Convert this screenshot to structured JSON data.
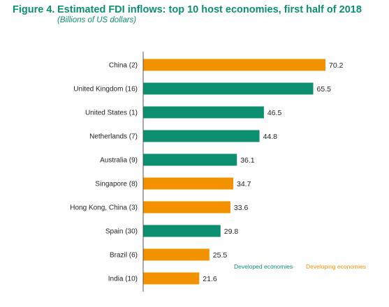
{
  "figure": {
    "number": "Figure 4.",
    "title": "Estimated FDI inflows: top 10 host economies, first half of 2018",
    "subtitle": "(Billions of US dollars)"
  },
  "colors": {
    "developed": "#0c8f71",
    "developing": "#f39200",
    "axis": "#555555"
  },
  "chart_data": {
    "type": "bar",
    "orientation": "horizontal",
    "categories": [
      "China (2)",
      "United Kingdom (16)",
      "United States (1)",
      "Netherlands (7)",
      "Australia (9)",
      "Singapore (8)",
      "Hong Kong, China (3)",
      "Spain (30)",
      "Brazil (6)",
      "India (10)"
    ],
    "values": [
      70.2,
      65.5,
      46.5,
      44.8,
      36.1,
      34.7,
      33.6,
      29.8,
      25.5,
      21.6
    ],
    "value_labels": [
      "70.2",
      "65.5",
      "46.5",
      "44.8",
      "36.1",
      "34.7",
      "33.6",
      "29.8",
      "25.5",
      "21.6"
    ],
    "groups": [
      "developing",
      "developed",
      "developed",
      "developed",
      "developed",
      "developing",
      "developing",
      "developed",
      "developing",
      "developing"
    ],
    "legend": [
      {
        "key": "developed",
        "label": "Developed economies"
      },
      {
        "key": "developing",
        "label": "Developing economies"
      }
    ],
    "legend_position": "bottom-right",
    "xlim": [
      0,
      75
    ],
    "grid": false,
    "title": "Estimated FDI inflows: top 10 host economies, first half of 2018",
    "xlabel": "",
    "ylabel": ""
  }
}
